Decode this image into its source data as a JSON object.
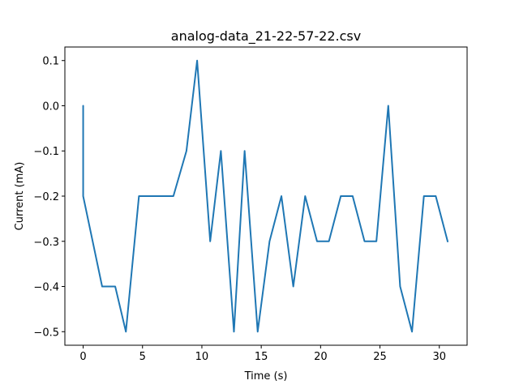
{
  "chart_data": {
    "type": "line",
    "title": "analog-data_21-22-57-22.csv",
    "xlabel": "Time (s)",
    "ylabel": "Current (mA)",
    "xlim": [
      -1.54,
      32.34
    ],
    "ylim": [
      -0.53,
      0.13
    ],
    "xticks": [
      0,
      5,
      10,
      15,
      20,
      25,
      30
    ],
    "yticks": [
      -0.5,
      -0.4,
      -0.3,
      -0.2,
      -0.1,
      0.0,
      0.1
    ],
    "ytick_labels": [
      "−0.5",
      "−0.4",
      "−0.3",
      "−0.2",
      "−0.1",
      "0.0",
      "0.1"
    ],
    "grid": false,
    "series": [
      {
        "color": "#1f77b4",
        "x": [
          0,
          0,
          0,
          0,
          0,
          0,
          0,
          0,
          0,
          0,
          1.6,
          2.7,
          3.6,
          4.7,
          5.7,
          6.7,
          7.6,
          8.7,
          9.6,
          10.7,
          11.6,
          12.7,
          13.6,
          14.7,
          15.7,
          16.7,
          17.7,
          18.7,
          19.7,
          20.7,
          21.7,
          22.7,
          23.7,
          24.7,
          25.7,
          26.7,
          27.7,
          28.7,
          29.7,
          30.7
        ],
        "y": [
          -0.1,
          0.0,
          -0.1,
          0.0,
          -0.1,
          0.0,
          -0.1,
          0.0,
          -0.1,
          -0.2,
          -0.4,
          -0.4,
          -0.5,
          -0.2,
          -0.2,
          -0.2,
          -0.2,
          -0.1,
          0.1,
          -0.3,
          -0.1,
          -0.5,
          -0.1,
          -0.5,
          -0.3,
          -0.2,
          -0.4,
          -0.2,
          -0.3,
          -0.3,
          -0.2,
          -0.2,
          -0.3,
          -0.3,
          0.0,
          -0.4,
          -0.5,
          -0.2,
          -0.2,
          -0.3
        ]
      }
    ]
  }
}
